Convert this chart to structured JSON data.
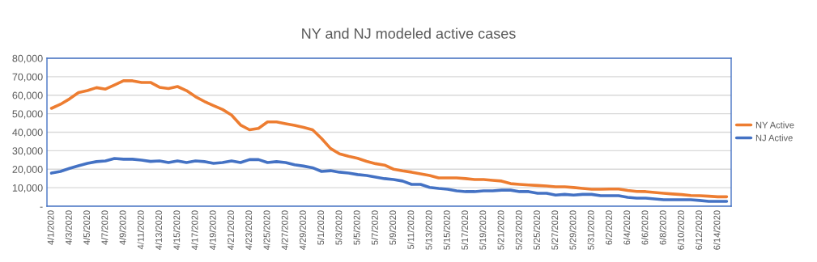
{
  "chart_data": {
    "type": "line",
    "title": "NY and NJ modeled active cases",
    "categories": [
      "4/1/2020",
      null,
      "4/3/2020",
      null,
      "4/5/2020",
      null,
      "4/7/2020",
      null,
      "4/9/2020",
      null,
      "4/11/2020",
      null,
      "4/13/2020",
      null,
      "4/15/2020",
      null,
      "4/17/2020",
      null,
      "4/19/2020",
      null,
      "4/21/2020",
      null,
      "4/23/2020",
      null,
      "4/25/2020",
      null,
      "4/27/2020",
      null,
      "4/29/2020",
      null,
      "5/1/2020",
      null,
      "5/3/2020",
      null,
      "5/5/2020",
      null,
      "5/7/2020",
      null,
      "5/9/2020",
      null,
      "5/11/2020",
      null,
      "5/13/2020",
      null,
      "5/15/2020",
      null,
      "5/17/2020",
      null,
      "5/19/2020",
      null,
      "5/21/2020",
      null,
      "5/23/2020",
      null,
      "5/25/2020",
      null,
      "5/27/2020",
      null,
      "5/29/2020",
      null,
      "5/31/2020",
      null,
      "6/2/2020",
      null,
      "6/4/2020",
      null,
      "6/6/2020",
      null,
      "6/8/2020",
      null,
      "6/10/2020",
      null,
      "6/12/2020",
      null,
      "6/14/2020",
      null
    ],
    "series": [
      {
        "name": "NY Active",
        "color": "#ed7d31",
        "values": [
          52900,
          55100,
          58000,
          61400,
          62500,
          64100,
          63300,
          65500,
          67800,
          67800,
          66900,
          66900,
          64300,
          63600,
          64700,
          62500,
          59200,
          56600,
          54400,
          52300,
          49300,
          43900,
          41300,
          42100,
          45600,
          45600,
          44600,
          43700,
          42600,
          41300,
          36600,
          31200,
          28300,
          27000,
          25900,
          24300,
          23000,
          22200,
          20000,
          19100,
          18400,
          17500,
          16600,
          15300,
          15300,
          15300,
          14900,
          14400,
          14400,
          14000,
          13600,
          12200,
          11800,
          11500,
          11200,
          10900,
          10500,
          10500,
          10100,
          9600,
          9200,
          9200,
          9300,
          9300,
          8500,
          8000,
          7900,
          7400,
          7000,
          6600,
          6300,
          5800,
          5700,
          5400,
          5100,
          5100
        ]
      },
      {
        "name": "NJ Active",
        "color": "#4472c4",
        "values": [
          17900,
          18800,
          20400,
          21900,
          23200,
          24100,
          24500,
          25800,
          25400,
          25400,
          24900,
          24200,
          24500,
          23600,
          24500,
          23600,
          24500,
          24100,
          23200,
          23600,
          24500,
          23600,
          25200,
          25200,
          23600,
          24100,
          23600,
          22400,
          21700,
          20800,
          18800,
          19200,
          18400,
          17900,
          17100,
          16600,
          15700,
          14900,
          14400,
          13600,
          11800,
          11800,
          10200,
          9600,
          9200,
          8300,
          7900,
          7900,
          8300,
          8300,
          8700,
          8700,
          7900,
          7900,
          7000,
          7000,
          6000,
          6400,
          6000,
          6400,
          6400,
          5700,
          5700,
          5700,
          4800,
          4400,
          4400,
          3900,
          3500,
          3500,
          3500,
          3500,
          3100,
          2600,
          2600,
          2600
        ]
      }
    ],
    "ylim": [
      0,
      80000
    ],
    "yticks": [
      {
        "value": 0,
        "label": "-"
      },
      {
        "value": 10000,
        "label": "10,000"
      },
      {
        "value": 20000,
        "label": "20,000"
      },
      {
        "value": 30000,
        "label": "30,000"
      },
      {
        "value": 40000,
        "label": "40,000"
      },
      {
        "value": 50000,
        "label": "50,000"
      },
      {
        "value": 60000,
        "label": "60,000"
      },
      {
        "value": 70000,
        "label": "70,000"
      },
      {
        "value": 80000,
        "label": "80,000"
      }
    ],
    "grid": "y",
    "legend": "right",
    "marker": "none",
    "line_style": "solid"
  }
}
